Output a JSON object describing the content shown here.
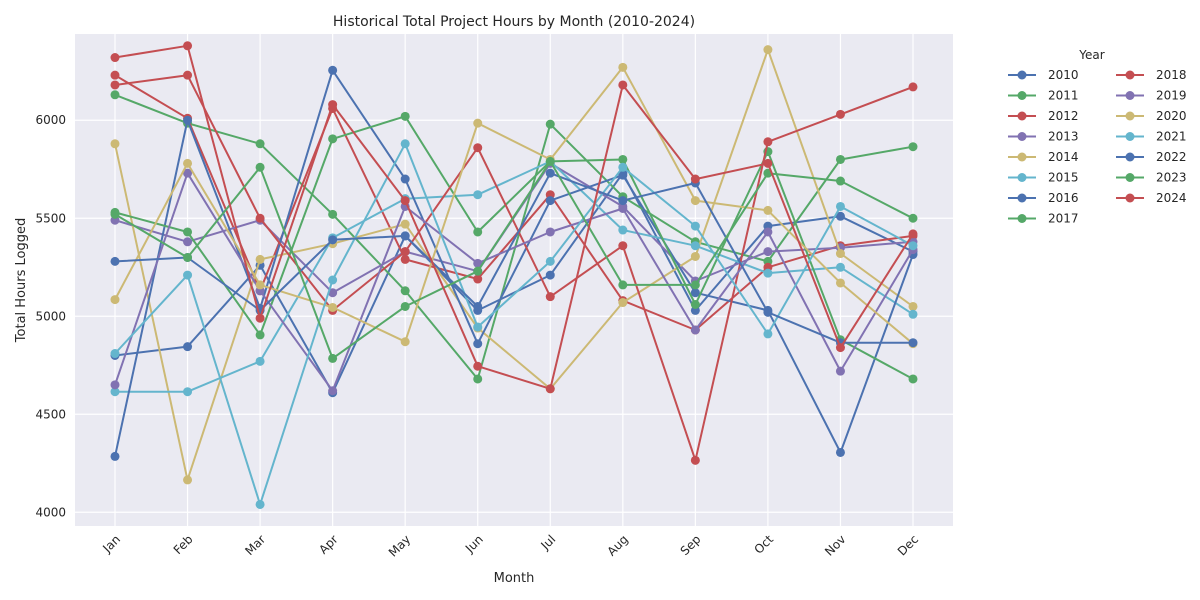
{
  "chart_data": {
    "type": "line",
    "title": "Historical Total Project Hours by Month (2010-2024)",
    "xlabel": "Month",
    "ylabel": "Total Hours Logged",
    "categories": [
      "Jan",
      "Feb",
      "Mar",
      "Apr",
      "May",
      "Jun",
      "Jul",
      "Aug",
      "Sep",
      "Oct",
      "Nov",
      "Dec"
    ],
    "ylim": [
      3930,
      6440
    ],
    "yticks": [
      4000,
      4500,
      5000,
      5500,
      6000
    ],
    "grid": true,
    "legend_title": "Year",
    "legend_placement": "outside-right",
    "series": [
      {
        "name": "2010",
        "color": "#4c72b0",
        "values": [
          4800,
          4845,
          5260,
          4610,
          5410,
          5030,
          5210,
          5730,
          5030,
          5460,
          5510,
          5330
        ]
      },
      {
        "name": "2011",
        "color": "#55a868",
        "values": [
          6130,
          5985,
          5880,
          5520,
          5130,
          4680,
          5980,
          5610,
          5380,
          5280,
          5800,
          5865
        ]
      },
      {
        "name": "2012",
        "color": "#c44e52",
        "values": [
          6230,
          6010,
          5130,
          6060,
          5290,
          5190,
          5620,
          5080,
          4930,
          5250,
          5360,
          5410
        ]
      },
      {
        "name": "2013",
        "color": "#8172b2",
        "values": [
          5490,
          5380,
          5490,
          5120,
          5330,
          5230,
          5780,
          5560,
          5180,
          5330,
          5350,
          5380
        ]
      },
      {
        "name": "2014",
        "color": "#ccb974",
        "values": [
          5880,
          4165,
          5290,
          5370,
          5470,
          4940,
          4630,
          5070,
          5305,
          6360,
          5320,
          5050
        ]
      },
      {
        "name": "2015",
        "color": "#64b5cd",
        "values": [
          4615,
          4615,
          4770,
          5400,
          5600,
          5620,
          5790,
          5440,
          5360,
          5220,
          5250,
          5010
        ]
      },
      {
        "name": "2016",
        "color": "#4c72b0",
        "values": [
          4285,
          6000,
          5040,
          6255,
          5700,
          4860,
          5590,
          5720,
          5120,
          5030,
          4305,
          5315
        ]
      },
      {
        "name": "2017",
        "color": "#55a868",
        "values": [
          5530,
          5430,
          4905,
          5905,
          6020,
          5430,
          5790,
          5800,
          5060,
          5840,
          4880,
          4680
        ]
      },
      {
        "name": "2018",
        "color": "#c44e52",
        "values": [
          6180,
          6230,
          5500,
          5030,
          5330,
          5860,
          5100,
          5360,
          4265,
          5890,
          6030,
          6170
        ]
      },
      {
        "name": "2019",
        "color": "#8172b2",
        "values": [
          4650,
          5730,
          5130,
          4620,
          5560,
          5270,
          5430,
          5550,
          4930,
          5430,
          4720,
          5340
        ]
      },
      {
        "name": "2020",
        "color": "#ccb974",
        "values": [
          5085,
          5780,
          5160,
          5045,
          4870,
          5985,
          5800,
          6270,
          5590,
          5540,
          5170,
          4860
        ]
      },
      {
        "name": "2021",
        "color": "#64b5cd",
        "values": [
          4810,
          5210,
          4040,
          5185,
          5880,
          4945,
          5280,
          5760,
          5460,
          4910,
          5560,
          5360
        ]
      },
      {
        "name": "2022",
        "color": "#4c72b0",
        "values": [
          5280,
          5300,
          5030,
          5390,
          5410,
          5050,
          5730,
          5590,
          5680,
          5020,
          4865,
          4865
        ]
      },
      {
        "name": "2023",
        "color": "#55a868",
        "values": [
          5520,
          5300,
          5760,
          4785,
          5050,
          5230,
          5790,
          5160,
          5160,
          5730,
          5690,
          5500
        ]
      },
      {
        "name": "2024",
        "color": "#c44e52",
        "values": [
          6320,
          6380,
          4990,
          6080,
          5590,
          4745,
          4630,
          6180,
          5700,
          5780,
          4840,
          5420
        ]
      }
    ]
  }
}
